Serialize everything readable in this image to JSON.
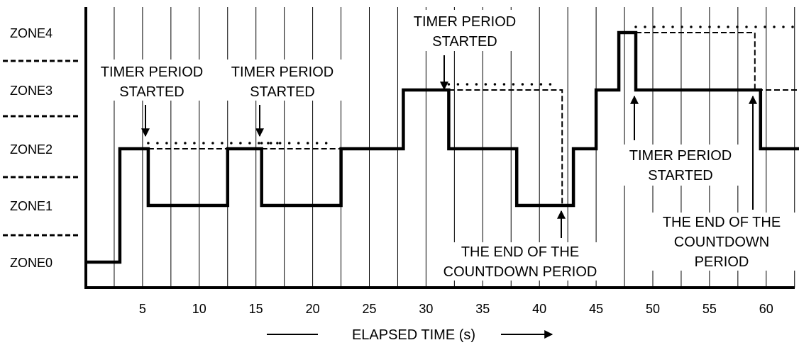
{
  "zones": [
    "ZONE0",
    "ZONE1",
    "ZONE2",
    "ZONE3",
    "ZONE4"
  ],
  "x_ticks": [
    5,
    10,
    15,
    20,
    25,
    30,
    35,
    40,
    45,
    50,
    55,
    60
  ],
  "x_axis": {
    "label": "ELAPSED TIME (s)",
    "min": 0,
    "max": 63
  },
  "annotations": {
    "timer_started_1": [
      "TIMER PERIOD",
      "STARTED"
    ],
    "timer_started_2": [
      "TIMER PERIOD",
      "STARTED"
    ],
    "timer_started_3": [
      "TIMER PERIOD",
      "STARTED"
    ],
    "timer_started_4": [
      "TIMER PERIOD",
      "STARTED"
    ],
    "countdown_end_1": [
      "THE END OF THE",
      "COUNTDOWN PERIOD"
    ],
    "countdown_end_2": [
      "THE END OF THE",
      "COUNTDOWN",
      "PERIOD"
    ]
  },
  "chart_data": {
    "type": "line",
    "series": [
      {
        "style": "solid",
        "points": [
          [
            0,
            0
          ],
          [
            3,
            0
          ],
          [
            3,
            2
          ],
          [
            5.5,
            2
          ],
          [
            5.5,
            1
          ],
          [
            12.5,
            1
          ],
          [
            12.5,
            2
          ],
          [
            15.5,
            2
          ],
          [
            15.5,
            1
          ],
          [
            22.5,
            1
          ],
          [
            22.5,
            2
          ],
          [
            28,
            2
          ],
          [
            28,
            3
          ],
          [
            32,
            3
          ],
          [
            32,
            2
          ],
          [
            38,
            2
          ],
          [
            38,
            1
          ],
          [
            43,
            1
          ],
          [
            43,
            2
          ],
          [
            45,
            2
          ],
          [
            45,
            3
          ],
          [
            47,
            3
          ],
          [
            47,
            4
          ],
          [
            48.5,
            4
          ],
          [
            48.5,
            3
          ],
          [
            59.5,
            3
          ],
          [
            59.5,
            2
          ],
          [
            63,
            2
          ]
        ]
      },
      {
        "style": "dashed",
        "points": [
          [
            5.5,
            2
          ],
          [
            12.5,
            2
          ]
        ]
      },
      {
        "style": "dashed",
        "points": [
          [
            15.5,
            2
          ],
          [
            22.5,
            2
          ]
        ]
      },
      {
        "style": "dashed",
        "points": [
          [
            32,
            3
          ],
          [
            42,
            3
          ],
          [
            42,
            1
          ]
        ]
      },
      {
        "style": "dashed",
        "points": [
          [
            48.5,
            4
          ],
          [
            59,
            4
          ],
          [
            59,
            3
          ],
          [
            63,
            3
          ]
        ]
      },
      {
        "style": "dotted",
        "points": [
          [
            5.5,
            2
          ],
          [
            17,
            2
          ]
        ]
      },
      {
        "style": "dotted",
        "points": [
          [
            15.5,
            2
          ],
          [
            22,
            2
          ]
        ]
      },
      {
        "style": "dotted",
        "points": [
          [
            32,
            3
          ],
          [
            41,
            3
          ]
        ]
      },
      {
        "style": "dotted",
        "points": [
          [
            48.5,
            4
          ],
          [
            63,
            4
          ]
        ]
      }
    ]
  }
}
